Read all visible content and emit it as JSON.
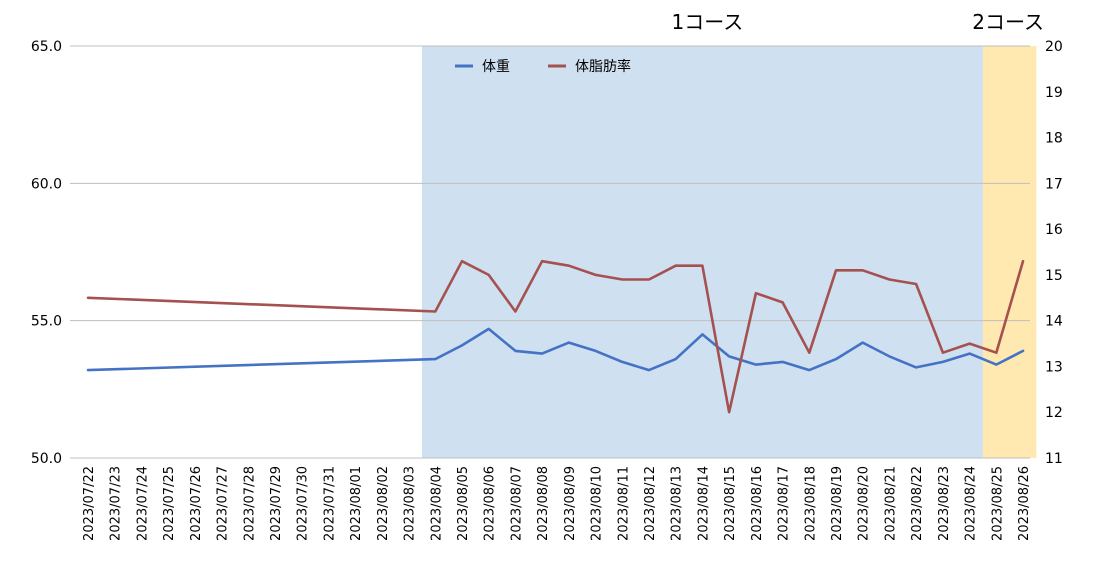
{
  "chart_data": {
    "type": "line",
    "categories": [
      "2023/07/22",
      "2023/07/23",
      "2023/07/24",
      "2023/07/25",
      "2023/07/26",
      "2023/07/27",
      "2023/07/28",
      "2023/07/29",
      "2023/07/30",
      "2023/07/31",
      "2023/08/01",
      "2023/08/02",
      "2023/08/03",
      "2023/08/04",
      "2023/08/05",
      "2023/08/06",
      "2023/08/07",
      "2023/08/08",
      "2023/08/09",
      "2023/08/10",
      "2023/08/11",
      "2023/08/12",
      "2023/08/13",
      "2023/08/14",
      "2023/08/15",
      "2023/08/16",
      "2023/08/17",
      "2023/08/18",
      "2023/08/19",
      "2023/08/20",
      "2023/08/21",
      "2023/08/22",
      "2023/08/23",
      "2023/08/24",
      "2023/08/25",
      "2023/08/26"
    ],
    "series": [
      {
        "name": "体重",
        "axis": "left",
        "color": "#4472C4",
        "points": [
          [
            "2023/07/22",
            53.2
          ],
          [
            "2023/08/04",
            53.6
          ],
          [
            "2023/08/05",
            54.1
          ],
          [
            "2023/08/06",
            54.7
          ],
          [
            "2023/08/07",
            53.9
          ],
          [
            "2023/08/08",
            53.8
          ],
          [
            "2023/08/09",
            54.2
          ],
          [
            "2023/08/10",
            53.9
          ],
          [
            "2023/08/11",
            53.5
          ],
          [
            "2023/08/12",
            53.2
          ],
          [
            "2023/08/13",
            53.6
          ],
          [
            "2023/08/14",
            54.5
          ],
          [
            "2023/08/15",
            53.7
          ],
          [
            "2023/08/16",
            53.4
          ],
          [
            "2023/08/17",
            53.5
          ],
          [
            "2023/08/18",
            53.2
          ],
          [
            "2023/08/19",
            53.6
          ],
          [
            "2023/08/20",
            54.2
          ],
          [
            "2023/08/21",
            53.7
          ],
          [
            "2023/08/22",
            53.3
          ],
          [
            "2023/08/23",
            53.5
          ],
          [
            "2023/08/24",
            53.8
          ],
          [
            "2023/08/25",
            53.4
          ],
          [
            "2023/08/26",
            53.9
          ]
        ]
      },
      {
        "name": "体脂肪率",
        "axis": "right",
        "color": "#A5514F",
        "points": [
          [
            "2023/07/22",
            14.5
          ],
          [
            "2023/08/04",
            14.2
          ],
          [
            "2023/08/05",
            15.3
          ],
          [
            "2023/08/06",
            15.0
          ],
          [
            "2023/08/07",
            14.2
          ],
          [
            "2023/08/08",
            15.3
          ],
          [
            "2023/08/09",
            15.2
          ],
          [
            "2023/08/10",
            15.0
          ],
          [
            "2023/08/11",
            14.9
          ],
          [
            "2023/08/12",
            14.9
          ],
          [
            "2023/08/13",
            15.2
          ],
          [
            "2023/08/14",
            15.2
          ],
          [
            "2023/08/15",
            12.0
          ],
          [
            "2023/08/16",
            14.6
          ],
          [
            "2023/08/17",
            14.4
          ],
          [
            "2023/08/18",
            13.3
          ],
          [
            "2023/08/19",
            15.1
          ],
          [
            "2023/08/20",
            15.1
          ],
          [
            "2023/08/21",
            14.9
          ],
          [
            "2023/08/22",
            14.8
          ],
          [
            "2023/08/23",
            13.3
          ],
          [
            "2023/08/24",
            13.5
          ],
          [
            "2023/08/25",
            13.3
          ],
          [
            "2023/08/26",
            15.3
          ]
        ]
      }
    ],
    "y_left": {
      "min": 50,
      "max": 65,
      "ticks": [
        "50.0",
        "55.0",
        "60.0",
        "65.0"
      ]
    },
    "y_right": {
      "min": 11,
      "max": 20,
      "ticks": [
        "11",
        "12",
        "13",
        "14",
        "15",
        "16",
        "17",
        "18",
        "19",
        "20"
      ]
    },
    "regions": [
      {
        "label": "1コース",
        "start": "2023/08/04",
        "end": "2023/08/24",
        "color": "#CFE0F1"
      },
      {
        "label": "2コース",
        "start": "2023/08/25",
        "end": "2023/08/26",
        "color": "#FFE9B0"
      }
    ],
    "grid": "horizontal",
    "legend": "top",
    "title": "",
    "xlabel": "",
    "ylabel": ""
  }
}
